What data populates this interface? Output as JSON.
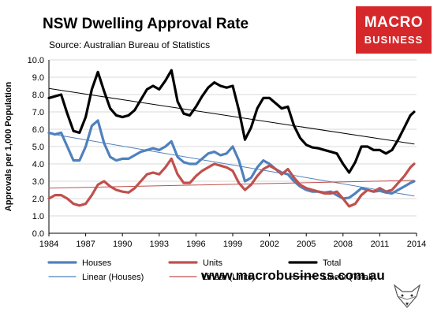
{
  "header": {
    "title": "NSW Dwelling Approval Rate",
    "subtitle": "Source: Australian Bureau of Statistics"
  },
  "logo": {
    "line1": "MACRO",
    "line2": "BUSINESS"
  },
  "footer": {
    "url": "www.macrobusiness.com.au"
  },
  "colors": {
    "houses": "#4f81bd",
    "units": "#c0504d",
    "total": "#000000",
    "grid": "#d9d9d9",
    "logo_bg": "#d6272a"
  },
  "chart_data": {
    "type": "line",
    "ylabel": "Approvals per 1,000 Population",
    "ylim": [
      0,
      10
    ],
    "yticks": [
      "0.0",
      "1.0",
      "2.0",
      "3.0",
      "4.0",
      "5.0",
      "6.0",
      "7.0",
      "8.0",
      "9.0",
      "10.0"
    ],
    "xlim": [
      1984,
      2014
    ],
    "xticks": [
      "1984",
      "1987",
      "1990",
      "1993",
      "1996",
      "1999",
      "2002",
      "2005",
      "2008",
      "2011",
      "2014"
    ],
    "grid": true,
    "legend_position": "bottom",
    "series": [
      {
        "name": "Houses",
        "key": "houses",
        "x": [
          1984.0,
          1984.5,
          1985.0,
          1985.5,
          1986.0,
          1986.5,
          1987.0,
          1987.5,
          1988.0,
          1988.5,
          1989.0,
          1989.5,
          1990.0,
          1990.5,
          1991.0,
          1991.5,
          1992.0,
          1992.5,
          1993.0,
          1993.5,
          1994.0,
          1994.5,
          1995.0,
          1995.5,
          1996.0,
          1996.5,
          1997.0,
          1997.5,
          1998.0,
          1998.5,
          1999.0,
          1999.5,
          2000.0,
          2000.5,
          2001.0,
          2001.5,
          2002.0,
          2002.5,
          2003.0,
          2003.5,
          2004.0,
          2004.5,
          2005.0,
          2005.5,
          2006.0,
          2006.5,
          2007.0,
          2007.5,
          2008.0,
          2008.5,
          2009.0,
          2009.5,
          2010.0,
          2010.5,
          2011.0,
          2011.5,
          2012.0,
          2012.5,
          2013.0,
          2013.5,
          2013.8
        ],
        "y": [
          5.8,
          5.7,
          5.8,
          5.0,
          4.2,
          4.2,
          5.0,
          6.2,
          6.5,
          5.2,
          4.4,
          4.2,
          4.3,
          4.3,
          4.5,
          4.7,
          4.8,
          4.9,
          4.8,
          5.0,
          5.3,
          4.4,
          4.1,
          4.0,
          4.0,
          4.3,
          4.6,
          4.7,
          4.5,
          4.6,
          5.0,
          4.2,
          3.0,
          3.2,
          3.8,
          4.2,
          4.0,
          3.7,
          3.5,
          3.4,
          3.0,
          2.7,
          2.5,
          2.4,
          2.4,
          2.35,
          2.4,
          2.2,
          2.0,
          2.05,
          2.3,
          2.6,
          2.5,
          2.4,
          2.45,
          2.35,
          2.3,
          2.5,
          2.7,
          2.9,
          3.0
        ]
      },
      {
        "name": "Units",
        "key": "units",
        "x": [
          1984.0,
          1984.5,
          1985.0,
          1985.5,
          1986.0,
          1986.5,
          1987.0,
          1987.5,
          1988.0,
          1988.5,
          1989.0,
          1989.5,
          1990.0,
          1990.5,
          1991.0,
          1991.5,
          1992.0,
          1992.5,
          1993.0,
          1993.5,
          1994.0,
          1994.5,
          1995.0,
          1995.5,
          1996.0,
          1996.5,
          1997.0,
          1997.5,
          1998.0,
          1998.5,
          1999.0,
          1999.5,
          2000.0,
          2000.5,
          2001.0,
          2001.5,
          2002.0,
          2002.5,
          2003.0,
          2003.5,
          2004.0,
          2004.5,
          2005.0,
          2005.5,
          2006.0,
          2006.5,
          2007.0,
          2007.5,
          2008.0,
          2008.5,
          2009.0,
          2009.5,
          2010.0,
          2010.5,
          2011.0,
          2011.5,
          2012.0,
          2012.5,
          2013.0,
          2013.5,
          2013.8
        ],
        "y": [
          2.0,
          2.2,
          2.2,
          2.0,
          1.7,
          1.6,
          1.7,
          2.2,
          2.8,
          3.0,
          2.7,
          2.5,
          2.4,
          2.35,
          2.6,
          3.0,
          3.4,
          3.5,
          3.4,
          3.8,
          4.3,
          3.4,
          2.9,
          2.9,
          3.3,
          3.6,
          3.8,
          4.0,
          3.9,
          3.8,
          3.6,
          2.9,
          2.5,
          2.8,
          3.3,
          3.7,
          3.9,
          3.7,
          3.4,
          3.7,
          3.2,
          2.8,
          2.6,
          2.5,
          2.4,
          2.3,
          2.3,
          2.4,
          2.0,
          1.55,
          1.7,
          2.2,
          2.5,
          2.4,
          2.6,
          2.4,
          2.5,
          2.9,
          3.3,
          3.8,
          4.0
        ]
      },
      {
        "name": "Total",
        "key": "total",
        "x": [
          1984.0,
          1984.5,
          1985.0,
          1985.5,
          1986.0,
          1986.5,
          1987.0,
          1987.5,
          1988.0,
          1988.5,
          1989.0,
          1989.5,
          1990.0,
          1990.5,
          1991.0,
          1991.5,
          1992.0,
          1992.5,
          1993.0,
          1993.5,
          1994.0,
          1994.5,
          1995.0,
          1995.5,
          1996.0,
          1996.5,
          1997.0,
          1997.5,
          1998.0,
          1998.5,
          1999.0,
          1999.5,
          2000.0,
          2000.5,
          2001.0,
          2001.5,
          2002.0,
          2002.5,
          2003.0,
          2003.5,
          2004.0,
          2004.5,
          2005.0,
          2005.5,
          2006.0,
          2006.5,
          2007.0,
          2007.5,
          2008.0,
          2008.5,
          2009.0,
          2009.5,
          2010.0,
          2010.5,
          2011.0,
          2011.5,
          2012.0,
          2012.5,
          2013.0,
          2013.5,
          2013.8
        ],
        "y": [
          7.8,
          7.9,
          8.0,
          6.9,
          5.9,
          5.8,
          6.7,
          8.3,
          9.3,
          8.2,
          7.2,
          6.8,
          6.7,
          6.8,
          7.1,
          7.7,
          8.3,
          8.5,
          8.3,
          8.8,
          9.4,
          7.6,
          6.9,
          6.8,
          7.3,
          7.9,
          8.4,
          8.7,
          8.5,
          8.4,
          8.5,
          7.1,
          5.4,
          6.1,
          7.2,
          7.8,
          7.8,
          7.5,
          7.2,
          7.3,
          6.2,
          5.5,
          5.1,
          4.95,
          4.9,
          4.8,
          4.7,
          4.6,
          4.0,
          3.5,
          4.1,
          5.0,
          5.0,
          4.8,
          4.8,
          4.6,
          4.8,
          5.4,
          6.1,
          6.8,
          7.0
        ]
      },
      {
        "name": "Linear (Houses)",
        "key": "houses",
        "trend": true,
        "x": [
          1984,
          2013.8
        ],
        "y": [
          5.75,
          2.15
        ]
      },
      {
        "name": "Linear (Units)",
        "key": "units",
        "trend": true,
        "x": [
          1984,
          2013.8
        ],
        "y": [
          2.6,
          3.05
        ]
      },
      {
        "name": "Linear (Total)",
        "key": "total",
        "trend": true,
        "x": [
          1984,
          2013.8
        ],
        "y": [
          8.35,
          5.15
        ]
      }
    ]
  }
}
